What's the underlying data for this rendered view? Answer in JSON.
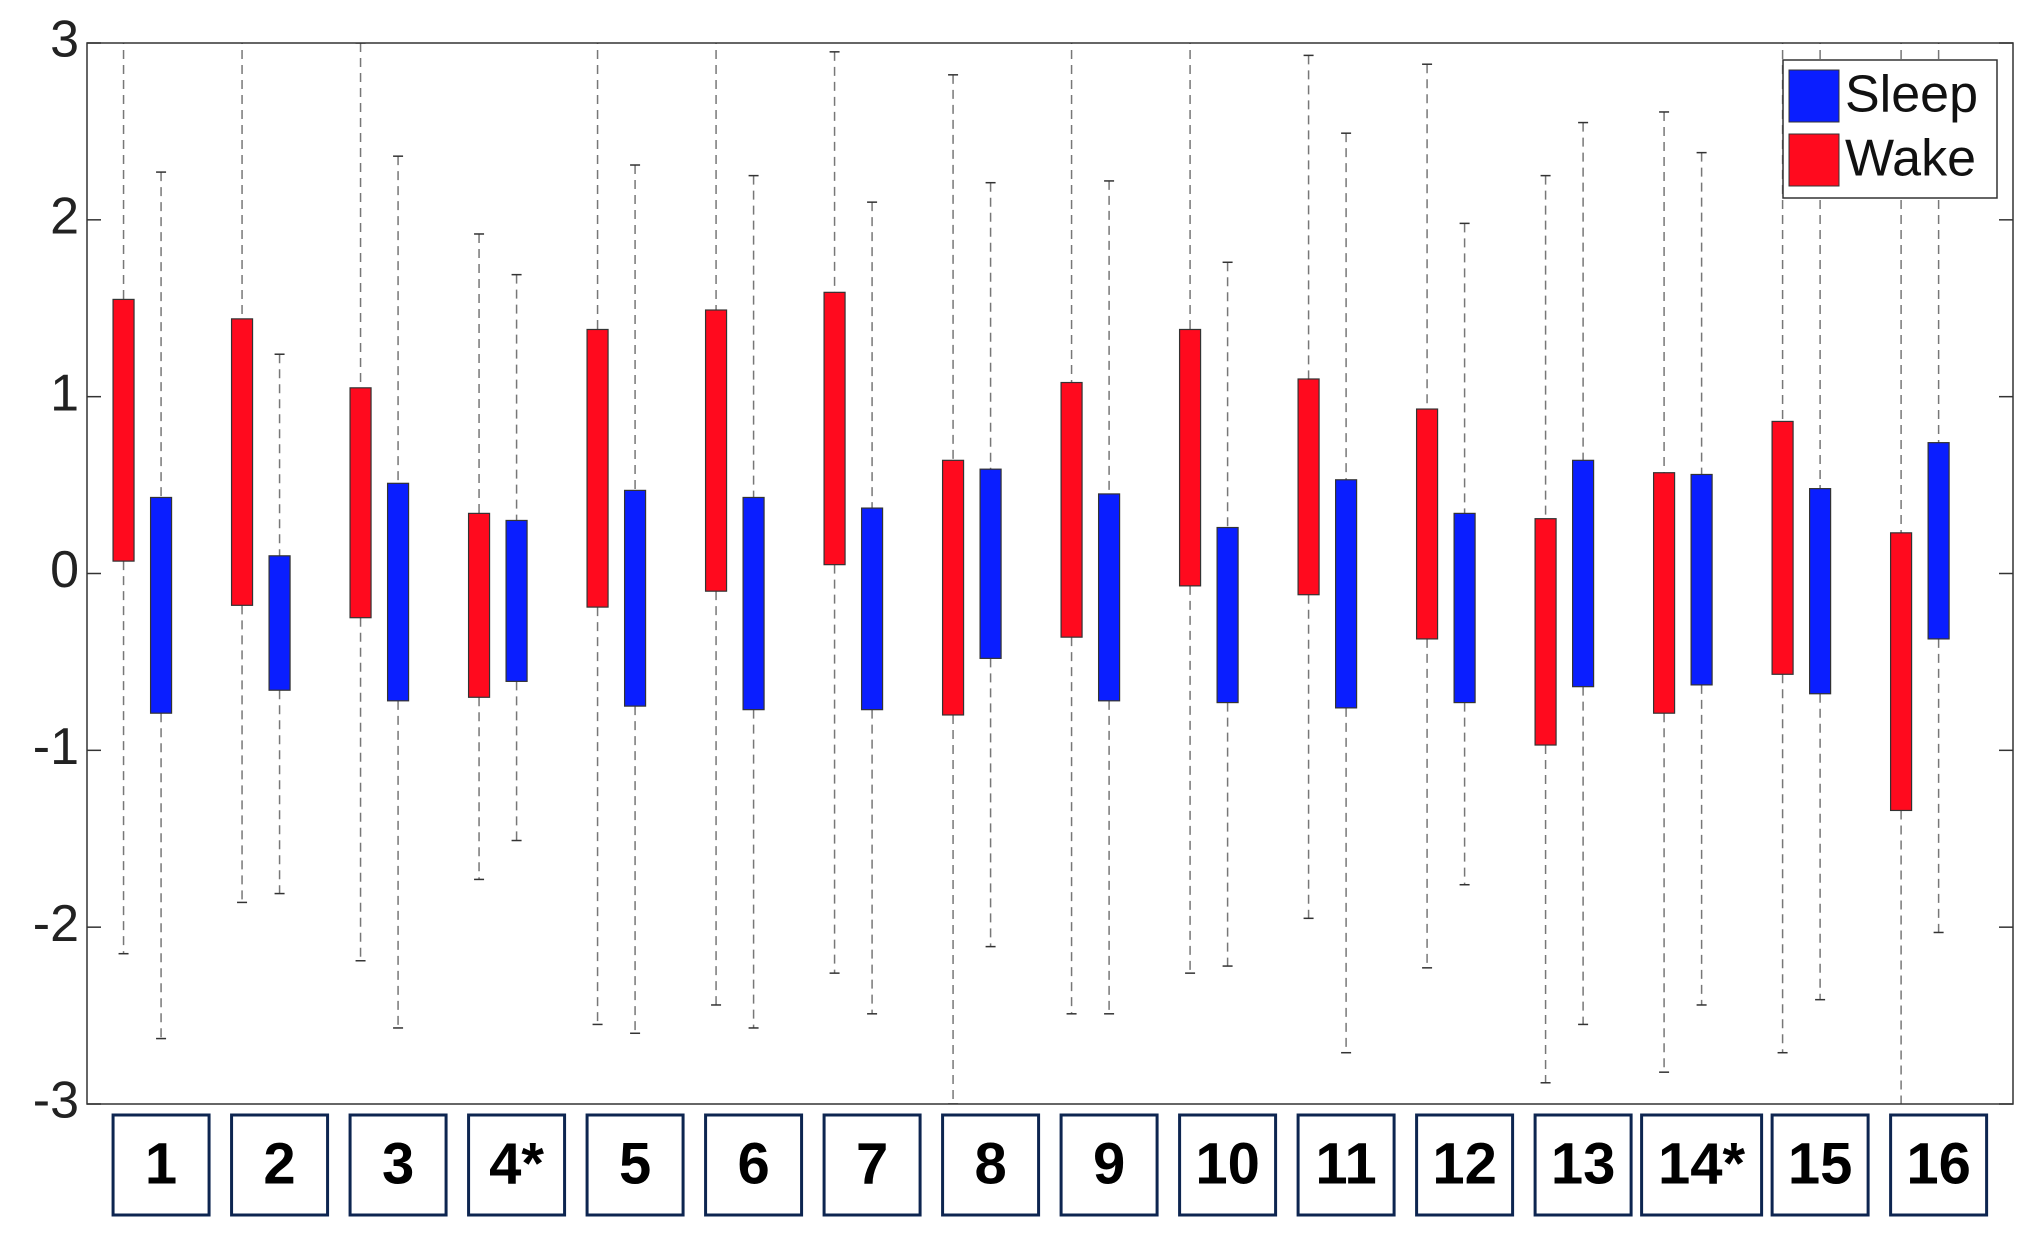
{
  "chart_data": {
    "type": "box",
    "categories": [
      "1",
      "2",
      "3",
      "4*",
      "5",
      "6",
      "7",
      "8",
      "9",
      "10",
      "11",
      "12",
      "13",
      "14*",
      "15",
      "16"
    ],
    "series": [
      {
        "name": "Wake",
        "color": "#ff0a1e",
        "q3": [
          1.55,
          1.44,
          1.05,
          0.34,
          1.38,
          1.49,
          1.59,
          0.64,
          1.08,
          1.38,
          1.1,
          0.93,
          0.31,
          0.57,
          0.86,
          0.23
        ],
        "q1": [
          0.07,
          -0.18,
          -0.25,
          -0.7,
          -0.19,
          -0.1,
          0.05,
          -0.8,
          -0.36,
          -0.07,
          -0.12,
          -0.37,
          -0.97,
          -0.79,
          -0.57,
          -1.34
        ],
        "whisker_high": [
          3.3,
          3.3,
          3.0,
          1.92,
          3.3,
          3.3,
          2.95,
          2.82,
          3.3,
          3.3,
          2.93,
          2.88,
          2.25,
          2.61,
          3.3,
          3.3
        ],
        "whisker_low": [
          -2.15,
          -1.86,
          -2.19,
          -1.73,
          -2.55,
          -2.44,
          -2.26,
          -3.0,
          -2.49,
          -2.26,
          -1.95,
          -2.23,
          -2.88,
          -2.82,
          -2.71,
          -3.3
        ]
      },
      {
        "name": "Sleep",
        "color": "#0a1eff",
        "q3": [
          0.43,
          0.1,
          0.51,
          0.3,
          0.47,
          0.43,
          0.37,
          0.59,
          0.45,
          0.26,
          0.53,
          0.34,
          0.64,
          0.56,
          0.48,
          0.74
        ],
        "q1": [
          -0.79,
          -0.66,
          -0.72,
          -0.61,
          -0.75,
          -0.77,
          -0.77,
          -0.48,
          -0.72,
          -0.73,
          -0.76,
          -0.73,
          -0.64,
          -0.63,
          -0.68,
          -0.37
        ],
        "whisker_high": [
          2.27,
          1.24,
          2.36,
          1.69,
          2.31,
          2.25,
          2.1,
          2.21,
          2.22,
          1.76,
          2.49,
          1.98,
          2.55,
          2.38,
          3.3,
          3.3
        ],
        "whisker_low": [
          -2.63,
          -1.81,
          -2.57,
          -1.51,
          -2.6,
          -2.57,
          -2.49,
          -2.11,
          -2.49,
          -2.22,
          -2.71,
          -1.76,
          -2.55,
          -2.44,
          -2.41,
          -2.03
        ]
      }
    ],
    "ylim": [
      -3,
      3
    ],
    "yticks": [
      -3,
      -2,
      -1,
      0,
      1,
      2,
      3
    ],
    "legend": "upper right"
  }
}
